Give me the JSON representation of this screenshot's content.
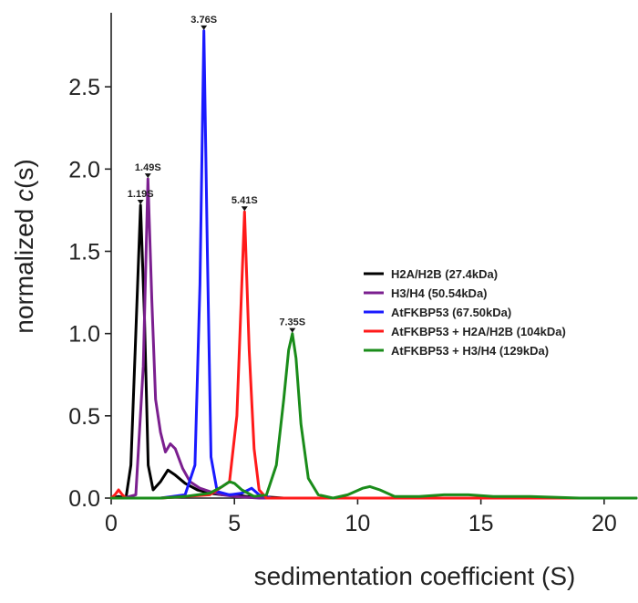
{
  "chart_data": {
    "type": "line",
    "xlabel": "sedimentation coefficient (S)",
    "ylabel_prefix": "normalized ",
    "ylabel_italic": "c",
    "ylabel_suffix": "(s)",
    "xlim": [
      0,
      21.3
    ],
    "ylim": [
      0,
      2.95
    ],
    "xticks": [
      0,
      5,
      10,
      15,
      20
    ],
    "yticks": [
      0.0,
      0.5,
      1.0,
      1.5,
      2.0,
      2.5
    ],
    "xtick_labels": [
      "0",
      "5",
      "10",
      "15",
      "20"
    ],
    "ytick_labels": [
      "0.0",
      "0.5",
      "1.0",
      "1.5",
      "2.0",
      "2.5"
    ],
    "legend_position": "right",
    "series": [
      {
        "name": "H2A/H2B (27.4kDa)",
        "color": "#000000",
        "x": [
          0,
          0.3,
          0.6,
          0.8,
          1.0,
          1.19,
          1.35,
          1.5,
          1.7,
          2.0,
          2.3,
          2.6,
          3.0,
          3.5,
          4.0,
          4.5,
          5.0,
          5.5,
          6.0,
          7.0,
          10.0,
          15.0,
          21.3
        ],
        "y": [
          0.0,
          0.01,
          0.0,
          0.2,
          1.0,
          1.78,
          1.1,
          0.2,
          0.05,
          0.1,
          0.17,
          0.14,
          0.09,
          0.05,
          0.03,
          0.02,
          0.02,
          0.01,
          0.01,
          0.0,
          0.0,
          0.0,
          0.0
        ]
      },
      {
        "name": "H3/H4 (50.54kDa)",
        "color": "#7b1f8f",
        "x": [
          0,
          0.5,
          1.0,
          1.3,
          1.49,
          1.65,
          1.8,
          2.0,
          2.2,
          2.4,
          2.6,
          2.9,
          3.2,
          3.6,
          4.0,
          4.5,
          5.0,
          6.0,
          10.0,
          15.0,
          21.3
        ],
        "y": [
          0.0,
          0.0,
          0.02,
          0.8,
          1.94,
          1.2,
          0.6,
          0.4,
          0.28,
          0.33,
          0.3,
          0.18,
          0.1,
          0.06,
          0.04,
          0.02,
          0.01,
          0.0,
          0.0,
          0.0,
          0.0
        ]
      },
      {
        "name": "AtFKBP53 (67.50kDa)",
        "color": "#1a1aff",
        "x": [
          0,
          2.0,
          3.0,
          3.4,
          3.6,
          3.76,
          3.9,
          4.05,
          4.3,
          4.8,
          5.3,
          5.7,
          6.0,
          6.5,
          21.3
        ],
        "y": [
          0.0,
          0.0,
          0.02,
          0.2,
          1.3,
          2.84,
          1.5,
          0.25,
          0.04,
          0.02,
          0.03,
          0.06,
          0.02,
          0.0,
          0.0
        ]
      },
      {
        "name": "AtFKBP53 + H2A/H2B (104kDa)",
        "color": "#ff1a1a",
        "x": [
          0,
          0.15,
          0.3,
          0.45,
          0.6,
          1.0,
          2.0,
          3.0,
          4.0,
          4.8,
          5.1,
          5.3,
          5.41,
          5.6,
          5.8,
          6.0,
          6.3,
          21.3
        ],
        "y": [
          0.0,
          0.02,
          0.05,
          0.02,
          0.0,
          0.0,
          0.0,
          0.01,
          0.02,
          0.1,
          0.5,
          1.3,
          1.74,
          0.9,
          0.3,
          0.05,
          0.0,
          0.0
        ]
      },
      {
        "name": "AtFKBP53 + H3/H4 (129kDa)",
        "color": "#1a8c1a",
        "x": [
          0,
          2.0,
          3.0,
          4.0,
          4.5,
          4.8,
          5.0,
          5.3,
          5.8,
          6.3,
          6.7,
          7.0,
          7.2,
          7.35,
          7.5,
          7.7,
          8.0,
          8.4,
          9.0,
          9.6,
          10.2,
          10.5,
          10.9,
          11.5,
          12.5,
          13.5,
          14.5,
          15.5,
          17.0,
          19.0,
          21.3
        ],
        "y": [
          0.0,
          0.0,
          0.01,
          0.03,
          0.07,
          0.1,
          0.09,
          0.05,
          0.01,
          0.02,
          0.2,
          0.6,
          0.9,
          1.0,
          0.85,
          0.45,
          0.12,
          0.02,
          0.0,
          0.02,
          0.06,
          0.07,
          0.05,
          0.01,
          0.01,
          0.02,
          0.02,
          0.01,
          0.01,
          0.0,
          0.0
        ]
      }
    ],
    "annotations": [
      {
        "text": "1.19S",
        "x": 1.19,
        "y": 1.78
      },
      {
        "text": "1.49S",
        "x": 1.49,
        "y": 1.94
      },
      {
        "text": "3.76S",
        "x": 3.76,
        "y": 2.84
      },
      {
        "text": "5.41S",
        "x": 5.41,
        "y": 1.74
      },
      {
        "text": "7.35S",
        "x": 7.35,
        "y": 1.0
      }
    ]
  }
}
